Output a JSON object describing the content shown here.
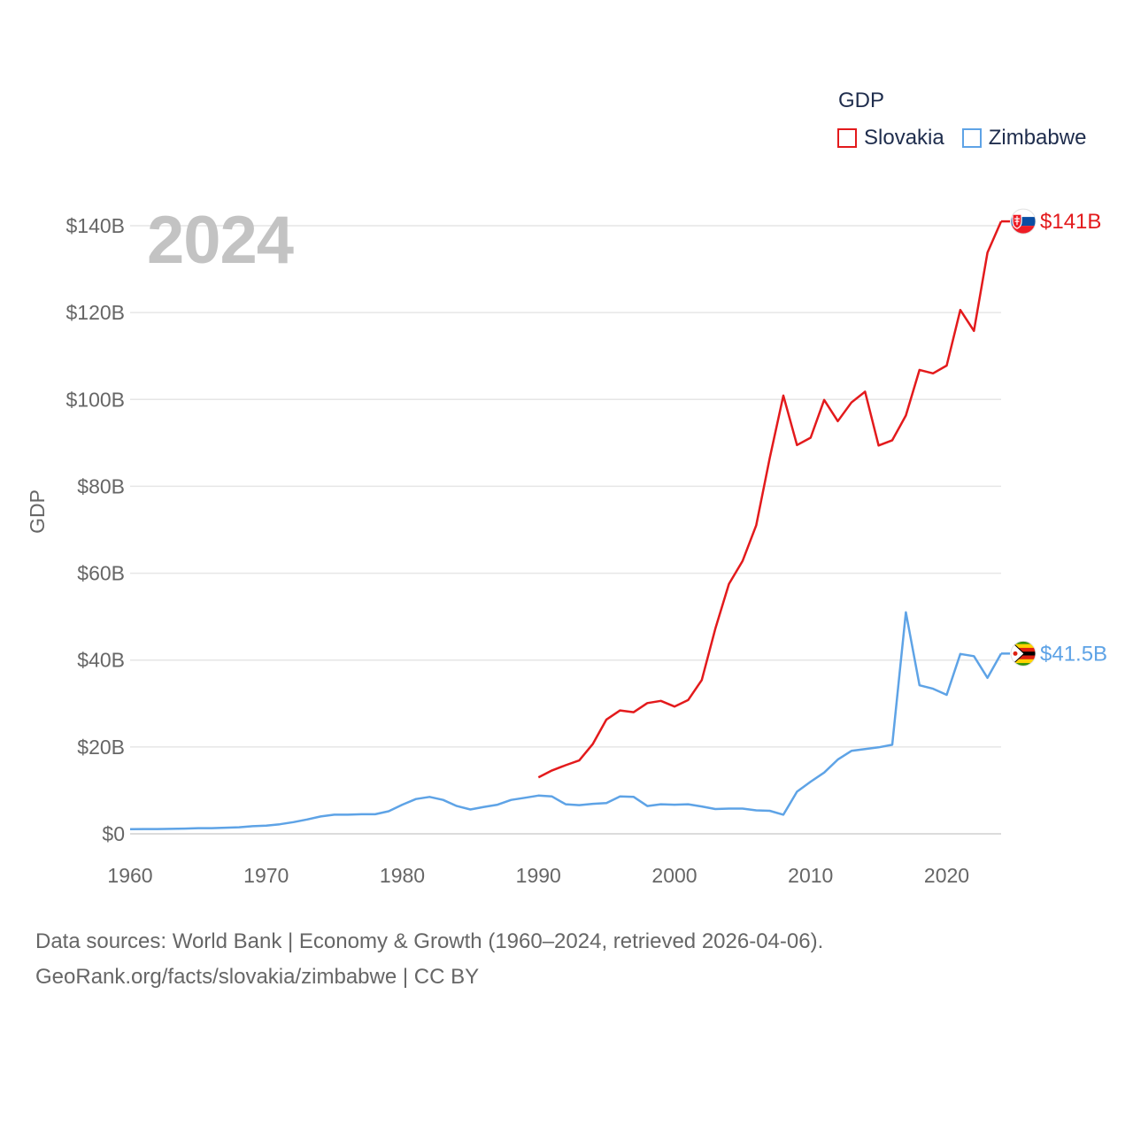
{
  "legend": {
    "title": "GDP",
    "items": [
      {
        "label": "Slovakia",
        "color": "#e31a1c"
      },
      {
        "label": "Zimbabwe",
        "color": "#5ea3e6"
      }
    ]
  },
  "year_watermark": "2024",
  "footer": {
    "line1": "Data sources: World Bank | Economy & Growth (1960–2024, retrieved 2026-04-06).",
    "line2": "GeoRank.org/facts/slovakia/zimbabwe | CC BY"
  },
  "chart_data": {
    "type": "line",
    "title": "GDP",
    "xlabel": "",
    "ylabel": "GDP",
    "xlim": [
      1960,
      2024
    ],
    "ylim": [
      0,
      140
    ],
    "x_ticks": [
      1960,
      1970,
      1980,
      1990,
      2000,
      2010,
      2020
    ],
    "x_tick_labels": [
      "1960",
      "1970",
      "1980",
      "1990",
      "2000",
      "2010",
      "2020"
    ],
    "y_ticks": [
      0,
      20,
      40,
      60,
      80,
      100,
      120,
      140
    ],
    "y_tick_labels": [
      "$0",
      "$20B",
      "$40B",
      "$60B",
      "$80B",
      "$100B",
      "$120B",
      "$140B"
    ],
    "grid": true,
    "units": "billion USD",
    "series": [
      {
        "name": "Slovakia",
        "color": "#e31a1c",
        "icon": "slovakia-flag-icon",
        "end_label": "$141B",
        "x": [
          1990,
          1991,
          1992,
          1993,
          1994,
          1995,
          1996,
          1997,
          1998,
          1999,
          2000,
          2001,
          2002,
          2003,
          2004,
          2005,
          2006,
          2007,
          2008,
          2009,
          2010,
          2011,
          2012,
          2013,
          2014,
          2015,
          2016,
          2017,
          2018,
          2019,
          2020,
          2021,
          2022,
          2023,
          2024
        ],
        "values": [
          13.0,
          14.6,
          15.8,
          16.9,
          20.7,
          26.3,
          28.4,
          28.0,
          30.1,
          30.6,
          29.3,
          30.8,
          35.4,
          47.2,
          57.5,
          62.8,
          71.0,
          86.5,
          100.9,
          89.5,
          91.2,
          99.9,
          95.0,
          99.3,
          101.8,
          89.4,
          90.6,
          96.3,
          106.8,
          106.0,
          107.8,
          120.6,
          115.8,
          133.8,
          141.0
        ]
      },
      {
        "name": "Zimbabwe",
        "color": "#5ea3e6",
        "icon": "zimbabwe-flag-icon",
        "end_label": "$41.5B",
        "x": [
          1960,
          1961,
          1962,
          1963,
          1964,
          1965,
          1966,
          1967,
          1968,
          1969,
          1970,
          1971,
          1972,
          1973,
          1974,
          1975,
          1976,
          1977,
          1978,
          1979,
          1980,
          1981,
          1982,
          1983,
          1984,
          1985,
          1986,
          1987,
          1988,
          1989,
          1990,
          1991,
          1992,
          1993,
          1994,
          1995,
          1996,
          1997,
          1998,
          1999,
          2000,
          2001,
          2002,
          2003,
          2004,
          2005,
          2006,
          2007,
          2008,
          2009,
          2010,
          2011,
          2012,
          2013,
          2014,
          2015,
          2016,
          2017,
          2018,
          2019,
          2020,
          2021,
          2022,
          2023,
          2024
        ],
        "values": [
          1.05,
          1.1,
          1.1,
          1.15,
          1.2,
          1.3,
          1.3,
          1.4,
          1.5,
          1.75,
          1.9,
          2.2,
          2.7,
          3.3,
          4.0,
          4.4,
          4.4,
          4.5,
          4.5,
          5.2,
          6.7,
          8.0,
          8.5,
          7.8,
          6.4,
          5.6,
          6.2,
          6.7,
          7.8,
          8.3,
          8.8,
          8.6,
          6.8,
          6.6,
          6.9,
          7.1,
          8.6,
          8.5,
          6.4,
          6.8,
          6.7,
          6.8,
          6.3,
          5.7,
          5.8,
          5.8,
          5.4,
          5.3,
          4.4,
          9.7,
          12.0,
          14.1,
          17.1,
          19.1,
          19.5,
          19.9,
          20.5,
          51.0,
          34.2,
          33.4,
          32.0,
          41.4,
          40.9,
          35.9,
          41.5
        ]
      }
    ]
  }
}
